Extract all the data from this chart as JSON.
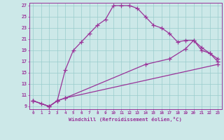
{
  "xlabel": "Windchill (Refroidissement éolien,°C)",
  "bg_color": "#cce8e8",
  "grid_color": "#99cccc",
  "line_color": "#993399",
  "xlim": [
    -0.5,
    23.5
  ],
  "ylim": [
    8.5,
    27.5
  ],
  "xticks": [
    0,
    1,
    2,
    3,
    4,
    5,
    6,
    7,
    8,
    9,
    10,
    11,
    12,
    13,
    14,
    15,
    16,
    17,
    18,
    19,
    20,
    21,
    22,
    23
  ],
  "yticks": [
    9,
    11,
    13,
    15,
    17,
    19,
    21,
    23,
    25,
    27
  ],
  "line1_x": [
    0,
    1,
    2,
    3,
    4,
    5,
    6,
    7,
    8,
    9,
    10,
    11,
    12,
    13,
    14,
    15,
    16,
    17,
    18,
    19,
    20,
    21,
    22,
    23
  ],
  "line1_y": [
    10,
    9.5,
    9,
    10,
    15.5,
    19.0,
    20.5,
    22.0,
    23.5,
    24.5,
    27,
    27,
    27,
    26.5,
    25,
    23.5,
    23,
    22,
    20.5,
    20.8,
    20.8,
    19,
    18.5,
    17
  ],
  "line2_x": [
    0,
    2,
    3,
    4,
    14,
    17,
    19,
    20,
    21,
    22,
    23
  ],
  "line2_y": [
    10,
    9,
    10,
    10.5,
    16.5,
    17.5,
    19.3,
    20.8,
    19.5,
    18.5,
    17.5
  ],
  "line3_x": [
    0,
    2,
    3,
    4,
    23
  ],
  "line3_y": [
    10,
    9,
    10,
    10.5,
    16.5
  ]
}
